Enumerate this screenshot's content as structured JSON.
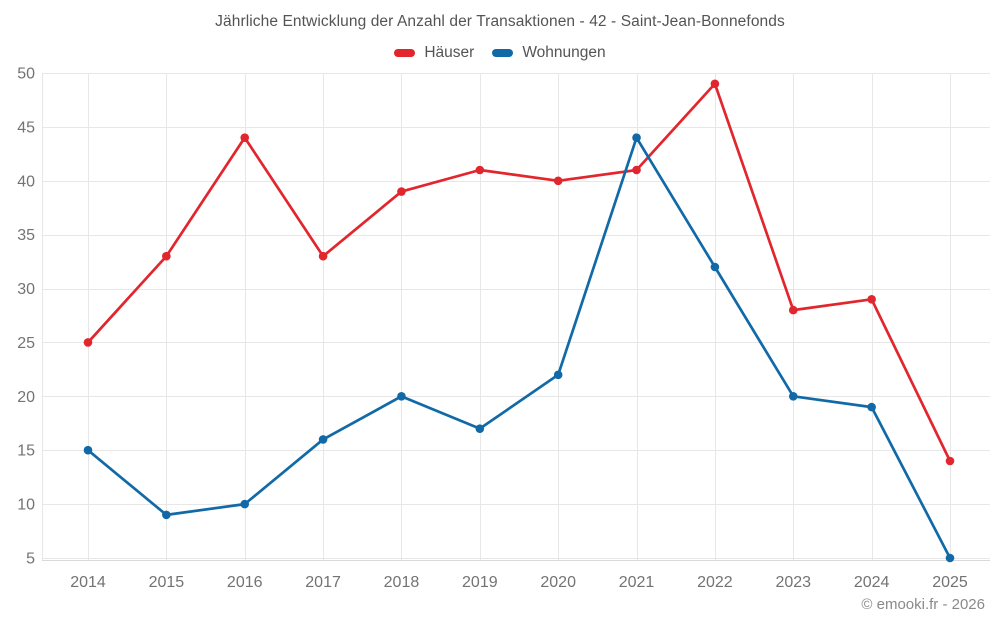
{
  "chart_data": {
    "type": "line",
    "title": "Jährliche Entwicklung der Anzahl der Transaktionen - 42 - Saint-Jean-Bonnefonds",
    "categories": [
      "2014",
      "2015",
      "2016",
      "2017",
      "2018",
      "2019",
      "2020",
      "2021",
      "2022",
      "2023",
      "2024",
      "2025"
    ],
    "series": [
      {
        "name": "Häuser",
        "color": "#e1262d",
        "values": [
          25,
          33,
          44,
          33,
          39,
          41,
          40,
          41,
          49,
          28,
          29,
          14
        ]
      },
      {
        "name": "Wohnungen",
        "color": "#116aa7",
        "values": [
          15,
          9,
          10,
          16,
          20,
          17,
          22,
          44,
          32,
          20,
          19,
          5
        ]
      }
    ],
    "ylim": [
      5,
      50
    ],
    "ytick_step": 5,
    "yticks": [
      5,
      10,
      15,
      20,
      25,
      30,
      35,
      40,
      45,
      50
    ],
    "grid": true,
    "legend_position": "top",
    "xlabel": "",
    "ylabel": ""
  },
  "attribution": "© emooki.fr - 2026",
  "colors": {
    "grid": "#e7e7e7",
    "axis": "#d9d9d9",
    "tick_text": "#737373",
    "title_text": "#545454",
    "attribution_text": "#8a8a8a",
    "background": "#ffffff"
  }
}
